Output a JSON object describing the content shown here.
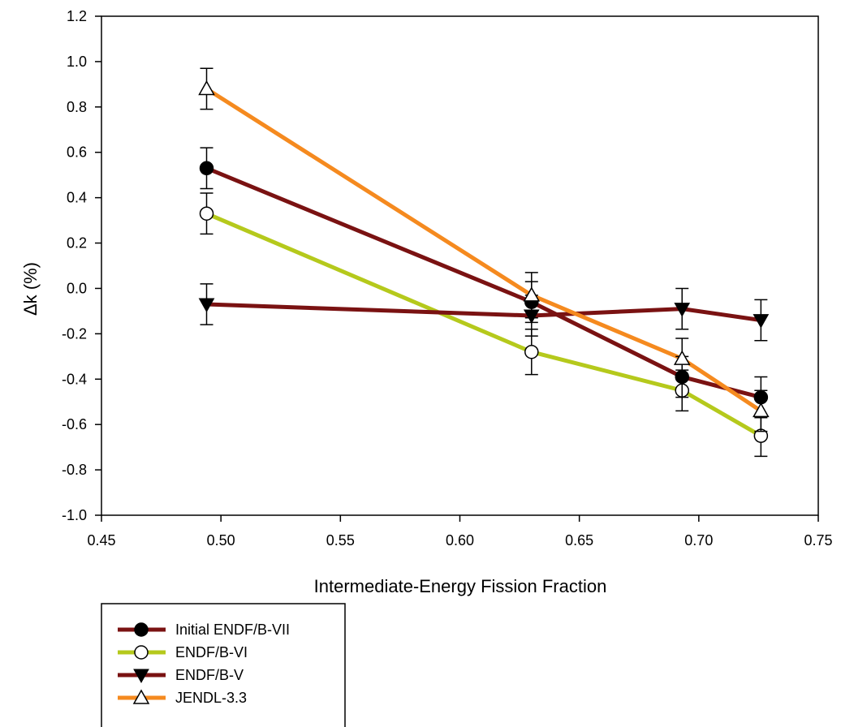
{
  "chart_data": {
    "type": "line",
    "title": "",
    "xlabel": "Intermediate-Energy Fission Fraction",
    "ylabel": "Δk (%)",
    "xlim": [
      0.45,
      0.75
    ],
    "ylim": [
      -1.0,
      1.2
    ],
    "xticks": [
      "0.45",
      "0.50",
      "0.55",
      "0.60",
      "0.65",
      "0.70",
      "0.75"
    ],
    "yticks": [
      "-1.0",
      "-0.8",
      "-0.6",
      "-0.4",
      "-0.2",
      "0.0",
      "0.2",
      "0.4",
      "0.6",
      "0.8",
      "1.0",
      "1.2"
    ],
    "grid": false,
    "legend_position": "bottom-left",
    "series": [
      {
        "name": "Initial ENDF/B-VII",
        "color": "#7a1212",
        "marker": "filled-circle",
        "x": [
          0.494,
          0.63,
          0.693,
          0.726
        ],
        "y": [
          0.53,
          -0.06,
          -0.39,
          -0.48
        ],
        "err": [
          0.09,
          0.09,
          0.09,
          0.09
        ]
      },
      {
        "name": "ENDF/B-VI",
        "color": "#b5c91c",
        "marker": "open-circle",
        "x": [
          0.494,
          0.63,
          0.693,
          0.726
        ],
        "y": [
          0.33,
          -0.28,
          -0.45,
          -0.65
        ],
        "err": [
          0.09,
          0.1,
          0.09,
          0.09
        ]
      },
      {
        "name": "ENDF/B-V",
        "color": "#7a1212",
        "marker": "filled-triangle-down",
        "x": [
          0.494,
          0.63,
          0.693,
          0.726
        ],
        "y": [
          -0.07,
          -0.12,
          -0.09,
          -0.14
        ],
        "err": [
          0.09,
          0.09,
          0.09,
          0.09
        ]
      },
      {
        "name": "JENDL-3.3",
        "color": "#f58a1f",
        "marker": "open-triangle-up",
        "x": [
          0.494,
          0.63,
          0.693,
          0.726
        ],
        "y": [
          0.88,
          -0.03,
          -0.31,
          -0.54
        ],
        "err": [
          0.09,
          0.1,
          0.09,
          0.09
        ]
      }
    ]
  }
}
